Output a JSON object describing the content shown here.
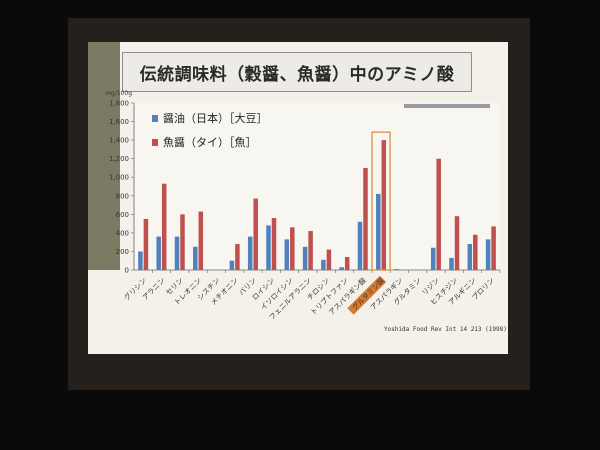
{
  "slide_title": "伝統調味料（穀醤、魚醤）中のアミノ酸",
  "citation": "Yoshida Food Rev Int 14 213 (1998)",
  "chart_data": {
    "type": "bar",
    "title": "伝統調味料（穀醤、魚醤）中のアミノ酸",
    "ylabel": "mg/100g",
    "ylim": [
      0,
      1800
    ],
    "yticks": [
      "0",
      "200",
      "400",
      "600",
      "800",
      "1,000",
      "1,200",
      "1,400",
      "1,600",
      "1,800"
    ],
    "grid": false,
    "legend_position": "top-left",
    "categories": [
      "グリシン",
      "アラニン",
      "セリン",
      "トレオニン",
      "シスチン",
      "メチオニン",
      "バリン",
      "ロイシン",
      "イソロイシン",
      "フェニルアラニン",
      "チロシン",
      "トリプトファン",
      "アスパラギン酸",
      "グルタミン酸",
      "アスパラギン",
      "グルタミン",
      "リジン",
      "ヒスチジン",
      "アルギニン",
      "プロリン"
    ],
    "highlight_category": "グルタミン酸",
    "series": [
      {
        "name": "醤油（日本）［大豆］",
        "color": "#4f81bd",
        "values": [
          200,
          360,
          360,
          250,
          0,
          100,
          360,
          480,
          330,
          250,
          110,
          30,
          520,
          820,
          10,
          0,
          240,
          130,
          280,
          330
        ]
      },
      {
        "name": "魚醤（タイ）［魚］",
        "color": "#c0504d",
        "values": [
          550,
          930,
          600,
          630,
          0,
          280,
          770,
          560,
          460,
          420,
          220,
          140,
          1100,
          1400,
          0,
          0,
          1200,
          580,
          380,
          470
        ]
      }
    ]
  }
}
